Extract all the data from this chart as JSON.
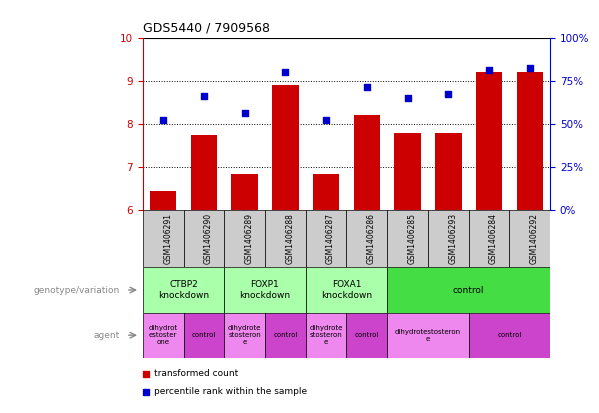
{
  "title": "GDS5440 / 7909568",
  "samples": [
    "GSM1406291",
    "GSM1406290",
    "GSM1406289",
    "GSM1406288",
    "GSM1406287",
    "GSM1406286",
    "GSM1406285",
    "GSM1406293",
    "GSM1406284",
    "GSM1406292"
  ],
  "bar_values": [
    6.45,
    7.75,
    6.85,
    8.9,
    6.85,
    8.2,
    7.8,
    7.8,
    9.2,
    9.2
  ],
  "scatter_values": [
    8.1,
    8.65,
    8.25,
    9.2,
    8.1,
    8.85,
    8.6,
    8.7,
    9.25,
    9.3
  ],
  "bar_color": "#cc0000",
  "scatter_color": "#0000cc",
  "ylim": [
    6,
    10
  ],
  "yticks_left": [
    6,
    7,
    8,
    9,
    10
  ],
  "ytick_labels_right": [
    "0%",
    "25%",
    "50%",
    "75%",
    "100%"
  ],
  "genotype_groups": [
    {
      "label": "CTBP2\nknockdown",
      "start": 0,
      "end": 2,
      "color": "#aaffaa"
    },
    {
      "label": "FOXP1\nknockdown",
      "start": 2,
      "end": 4,
      "color": "#aaffaa"
    },
    {
      "label": "FOXA1\nknockdown",
      "start": 4,
      "end": 6,
      "color": "#aaffaa"
    },
    {
      "label": "control",
      "start": 6,
      "end": 10,
      "color": "#44dd44"
    }
  ],
  "agent_groups": [
    {
      "label": "dihydrot\nestoster\none",
      "start": 0,
      "end": 1,
      "color": "#ee88ee"
    },
    {
      "label": "control",
      "start": 1,
      "end": 2,
      "color": "#cc44cc"
    },
    {
      "label": "dihydrote\nstosteron\ne",
      "start": 2,
      "end": 3,
      "color": "#ee88ee"
    },
    {
      "label": "control",
      "start": 3,
      "end": 4,
      "color": "#cc44cc"
    },
    {
      "label": "dihydrote\nstosteron\ne",
      "start": 4,
      "end": 5,
      "color": "#ee88ee"
    },
    {
      "label": "control",
      "start": 5,
      "end": 6,
      "color": "#cc44cc"
    },
    {
      "label": "dihydrotestosteron\ne",
      "start": 6,
      "end": 8,
      "color": "#ee88ee"
    },
    {
      "label": "control",
      "start": 8,
      "end": 10,
      "color": "#cc44cc"
    }
  ],
  "sample_bg_color": "#cccccc",
  "plot_bg_color": "#ffffff"
}
